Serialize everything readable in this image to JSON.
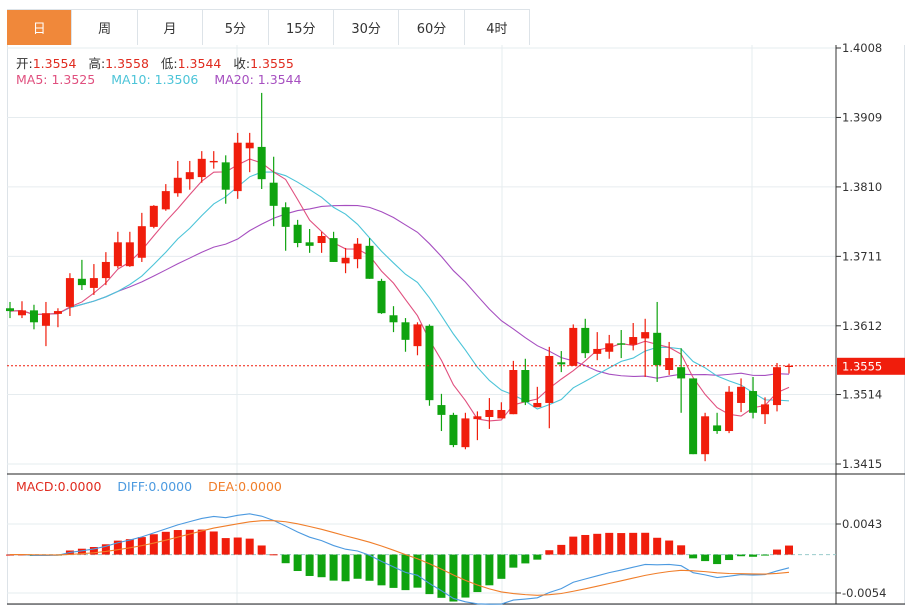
{
  "tabs": [
    {
      "label": "日",
      "active": true
    },
    {
      "label": "周"
    },
    {
      "label": "月"
    },
    {
      "label": "5分"
    },
    {
      "label": "15分"
    },
    {
      "label": "30分"
    },
    {
      "label": "60分"
    },
    {
      "label": "4时"
    }
  ],
  "ohlc_info": {
    "open_label": "开:",
    "open": "1.3554",
    "high_label": "高:",
    "high": "1.3558",
    "low_label": "低:",
    "low": "1.3544",
    "close_label": "收:",
    "close": "1.3555"
  },
  "ma_info": {
    "ma5": "MA5: 1.3525",
    "ma10": "MA10: 1.3506",
    "ma20": "MA20: 1.3544"
  },
  "macd_info": {
    "macd": "MACD:0.0000",
    "diff": "DIFF:0.0000",
    "dea": "DEA:0.0000"
  },
  "colors": {
    "up": "#f01d0c",
    "down": "#0fa30f",
    "ma5": "#e0507f",
    "ma10": "#4cc4d8",
    "ma20": "#a64fc0",
    "diff": "#4c9ae0",
    "dea": "#f07e2a",
    "accent": "#f0883a"
  },
  "chart_data": [
    {
      "type": "candlestick",
      "ylim": [
        1.3415,
        1.4008
      ],
      "yticks": [
        "1.4008",
        "1.3909",
        "1.3810",
        "1.3711",
        "1.3612",
        "1.3514",
        "1.3415"
      ],
      "last_price": "1.3555",
      "ohlc": [
        [
          1.3637,
          1.3646,
          1.3623,
          1.3633
        ],
        [
          1.3627,
          1.3647,
          1.3623,
          1.3634
        ],
        [
          1.3634,
          1.3642,
          1.3607,
          1.3617
        ],
        [
          1.3612,
          1.3646,
          1.3583,
          1.363
        ],
        [
          1.3629,
          1.3637,
          1.361,
          1.3633
        ],
        [
          1.3639,
          1.3687,
          1.3626,
          1.368
        ],
        [
          1.3679,
          1.3706,
          1.3663,
          1.367
        ],
        [
          1.3666,
          1.37,
          1.3656,
          1.368
        ],
        [
          1.368,
          1.3717,
          1.367,
          1.3703
        ],
        [
          1.3697,
          1.3746,
          1.3694,
          1.3731
        ],
        [
          1.3697,
          1.3746,
          1.3696,
          1.3731
        ],
        [
          1.3709,
          1.3773,
          1.3703,
          1.3754
        ],
        [
          1.3753,
          1.3784,
          1.3751,
          1.3783
        ],
        [
          1.3778,
          1.3814,
          1.3776,
          1.3804
        ],
        [
          1.3801,
          1.3847,
          1.3796,
          1.3823
        ],
        [
          1.3821,
          1.3847,
          1.3806,
          1.3831
        ],
        [
          1.3824,
          1.3861,
          1.3816,
          1.385
        ],
        [
          1.3845,
          1.3861,
          1.3836,
          1.3847
        ],
        [
          1.3845,
          1.3855,
          1.3786,
          1.3806
        ],
        [
          1.3804,
          1.3887,
          1.3793,
          1.3873
        ],
        [
          1.3865,
          1.3887,
          1.3831,
          1.3873
        ],
        [
          1.3867,
          1.3944,
          1.3807,
          1.3821
        ],
        [
          1.3816,
          1.3853,
          1.3754,
          1.3783
        ],
        [
          1.3781,
          1.3788,
          1.3719,
          1.3753
        ],
        [
          1.3756,
          1.3763,
          1.3724,
          1.373
        ],
        [
          1.3731,
          1.375,
          1.3716,
          1.3726
        ],
        [
          1.373,
          1.3746,
          1.3716,
          1.374
        ],
        [
          1.3737,
          1.3746,
          1.3703,
          1.3703
        ],
        [
          1.3701,
          1.3723,
          1.3687,
          1.3709
        ],
        [
          1.3707,
          1.3737,
          1.3694,
          1.3729
        ],
        [
          1.3726,
          1.3737,
          1.3679,
          1.3679
        ],
        [
          1.3676,
          1.3679,
          1.3629,
          1.363
        ],
        [
          1.3627,
          1.364,
          1.3603,
          1.3617
        ],
        [
          1.3617,
          1.3623,
          1.3575,
          1.3592
        ],
        [
          1.3583,
          1.3617,
          1.357,
          1.3614
        ],
        [
          1.3612,
          1.3614,
          1.3498,
          1.3506
        ],
        [
          1.3499,
          1.3515,
          1.3462,
          1.3485
        ],
        [
          1.3485,
          1.3488,
          1.3439,
          1.3442
        ],
        [
          1.3439,
          1.3488,
          1.3436,
          1.348
        ],
        [
          1.3479,
          1.349,
          1.3449,
          1.3483
        ],
        [
          1.3482,
          1.3509,
          1.3465,
          1.3492
        ],
        [
          1.348,
          1.3503,
          1.348,
          1.3492
        ],
        [
          1.3486,
          1.3562,
          1.3486,
          1.3549
        ],
        [
          1.3549,
          1.3565,
          1.3499,
          1.3503
        ],
        [
          1.3496,
          1.3525,
          1.3496,
          1.3502
        ],
        [
          1.3502,
          1.3582,
          1.3466,
          1.3569
        ],
        [
          1.356,
          1.3576,
          1.3546,
          1.3557
        ],
        [
          1.3555,
          1.3614,
          1.3555,
          1.3609
        ],
        [
          1.3609,
          1.3622,
          1.3566,
          1.3573
        ],
        [
          1.3572,
          1.3603,
          1.3563,
          1.3579
        ],
        [
          1.3575,
          1.3599,
          1.3565,
          1.3587
        ],
        [
          1.3587,
          1.3606,
          1.3566,
          1.3585
        ],
        [
          1.3585,
          1.3616,
          1.3577,
          1.3596
        ],
        [
          1.3594,
          1.3622,
          1.3539,
          1.3603
        ],
        [
          1.3602,
          1.3646,
          1.3532,
          1.3556
        ],
        [
          1.3549,
          1.3589,
          1.3542,
          1.3566
        ],
        [
          1.3553,
          1.358,
          1.3488,
          1.3537
        ],
        [
          1.3537,
          1.3537,
          1.3429,
          1.3429
        ],
        [
          1.3429,
          1.3488,
          1.3419,
          1.3483
        ],
        [
          1.347,
          1.3488,
          1.3458,
          1.3462
        ],
        [
          1.3462,
          1.3526,
          1.3459,
          1.3518
        ],
        [
          1.3502,
          1.3537,
          1.3489,
          1.3525
        ],
        [
          1.3519,
          1.3539,
          1.348,
          1.3488
        ],
        [
          1.3486,
          1.351,
          1.3472,
          1.35
        ],
        [
          1.3499,
          1.3559,
          1.349,
          1.3553
        ],
        [
          1.3554,
          1.3558,
          1.3544,
          1.3555
        ]
      ]
    },
    {
      "type": "macd",
      "ylim": [
        -0.0054,
        0.0043
      ],
      "yticks": [
        "0.0043",
        "-0.0054"
      ]
    }
  ]
}
